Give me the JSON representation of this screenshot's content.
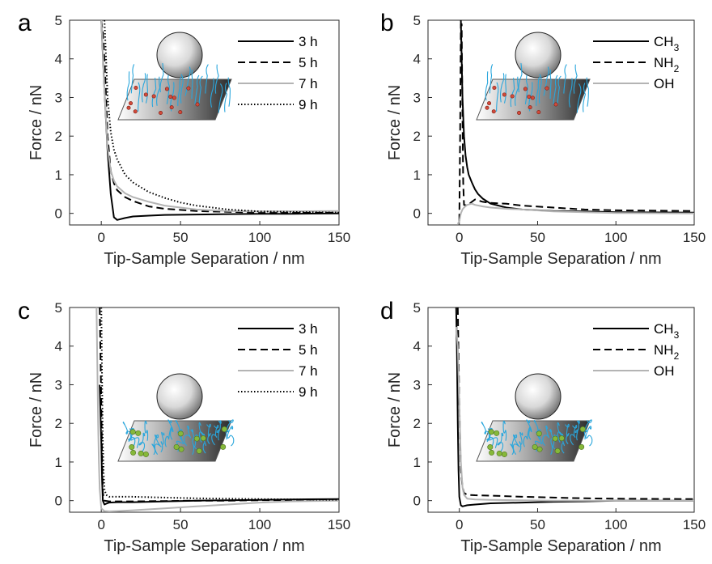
{
  "chart_data": [
    {
      "panel": "a",
      "type": "line",
      "xlabel": "Tip-Sample Separation / nm",
      "ylabel": "Force / nN",
      "xlim": [
        -20,
        150
      ],
      "ylim": [
        -0.3,
        5
      ],
      "xticks": [
        "0",
        "50",
        "100",
        "150"
      ],
      "yticks": [
        "0",
        "1",
        "2",
        "3",
        "4",
        "5"
      ],
      "legend_position": "top-right",
      "inset": "brush",
      "series": [
        {
          "name": "3 h",
          "style": "solid",
          "color": "#000000",
          "x": [
            0,
            2,
            4,
            6,
            8,
            10,
            15,
            20,
            30,
            40,
            60,
            80,
            100,
            120,
            150
          ],
          "y": [
            5,
            3.2,
            1.6,
            0.5,
            -0.1,
            -0.17,
            -0.12,
            -0.08,
            -0.06,
            -0.04,
            -0.03,
            -0.02,
            -0.01,
            -0.01,
            0
          ]
        },
        {
          "name": "5 h",
          "style": "dashed",
          "color": "#000000",
          "x": [
            0,
            1,
            2,
            3,
            4,
            6,
            8,
            10,
            15,
            20,
            30,
            40,
            60,
            80,
            100,
            150
          ],
          "y": [
            5,
            4.7,
            4.0,
            3.0,
            2.0,
            1.1,
            0.78,
            0.6,
            0.42,
            0.32,
            0.18,
            0.12,
            0.06,
            0.04,
            0.02,
            0.02
          ]
        },
        {
          "name": "7 h",
          "style": "solid",
          "color": "#b4b4b4",
          "x": [
            0,
            1,
            2,
            4,
            6,
            8,
            10,
            15,
            20,
            30,
            40,
            60,
            80,
            100,
            150
          ],
          "y": [
            5,
            4.2,
            3.2,
            1.7,
            1.1,
            0.85,
            0.7,
            0.52,
            0.42,
            0.3,
            0.2,
            0.1,
            0.06,
            0.05,
            0.06
          ]
        },
        {
          "name": "9 h",
          "style": "dotted",
          "color": "#000000",
          "x": [
            2,
            3,
            4,
            6,
            8,
            10,
            15,
            20,
            30,
            40,
            50,
            60,
            80,
            100,
            150
          ],
          "y": [
            5,
            4.0,
            3.0,
            2.1,
            1.65,
            1.4,
            1.0,
            0.8,
            0.55,
            0.4,
            0.28,
            0.2,
            0.1,
            0.05,
            0.02
          ]
        }
      ]
    },
    {
      "panel": "b",
      "type": "line",
      "xlabel": "Tip-Sample Separation / nm",
      "ylabel": "Force / nN",
      "xlim": [
        -20,
        150
      ],
      "ylim": [
        -0.3,
        5
      ],
      "xticks": [
        "0",
        "50",
        "100",
        "150"
      ],
      "yticks": [
        "0",
        "1",
        "2",
        "3",
        "4",
        "5"
      ],
      "legend_position": "top-right",
      "inset": "brush",
      "series": [
        {
          "name": "CH3",
          "style": "solid",
          "color": "#000000",
          "x": [
            1,
            1.5,
            2,
            3,
            4,
            5,
            6,
            8,
            10,
            12,
            15,
            20,
            30,
            40,
            60,
            80,
            100,
            150
          ],
          "y": [
            5,
            4.0,
            3.0,
            2.0,
            1.5,
            1.2,
            1.0,
            0.8,
            0.62,
            0.5,
            0.38,
            0.25,
            0.15,
            0.1,
            0.06,
            0.05,
            0.03,
            0.02
          ]
        },
        {
          "name": "NH2",
          "style": "dashed",
          "color": "#000000",
          "x": [
            0,
            0.5,
            1,
            1.5,
            2,
            2.5,
            3,
            5,
            8,
            10,
            15,
            20,
            30,
            40,
            60,
            80,
            100,
            150
          ],
          "y": [
            -0.2,
            2,
            4.9,
            4.9,
            2.5,
            0.8,
            0.22,
            0.2,
            0.3,
            0.36,
            0.3,
            0.27,
            0.25,
            0.2,
            0.15,
            0.1,
            0.08,
            0.06
          ]
        },
        {
          "name": "OH",
          "style": "solid",
          "color": "#b4b4b4",
          "x": [
            -1,
            0,
            1,
            2,
            3,
            5,
            8,
            10,
            15,
            20,
            30,
            40,
            60,
            80,
            100,
            150
          ],
          "y": [
            -0.28,
            -0.2,
            0.0,
            0.1,
            0.15,
            0.22,
            0.25,
            0.22,
            0.18,
            0.15,
            0.12,
            0.1,
            0.05,
            0.03,
            0.01,
            0
          ]
        }
      ]
    },
    {
      "panel": "c",
      "type": "line",
      "xlabel": "Tip-Sample Separation / nm",
      "ylabel": "Force / nN",
      "xlim": [
        -20,
        150
      ],
      "ylim": [
        -0.3,
        5
      ],
      "xticks": [
        "0",
        "50",
        "100",
        "150"
      ],
      "yticks": [
        "0",
        "1",
        "2",
        "3",
        "4",
        "5"
      ],
      "legend_position": "top-right",
      "inset": "coil",
      "series": [
        {
          "name": "3 h",
          "style": "solid",
          "color": "#000000",
          "x": [
            -1,
            0,
            0.5,
            1,
            2,
            3,
            5,
            10,
            20,
            40,
            60,
            80,
            100,
            120,
            150
          ],
          "y": [
            3,
            1.5,
            0.5,
            0.0,
            -0.1,
            -0.08,
            -0.05,
            -0.04,
            -0.04,
            -0.02,
            0,
            0.01,
            0.02,
            0.03,
            0.04
          ]
        },
        {
          "name": "5 h",
          "style": "dashed",
          "color": "#000000",
          "x": [
            -1,
            0,
            0.5,
            1,
            2,
            5,
            10,
            20,
            40,
            60,
            80,
            100,
            150
          ],
          "y": [
            5,
            2.5,
            1,
            0.2,
            0,
            -0.02,
            -0.02,
            -0.02,
            -0.01,
            0,
            0,
            0.01,
            0.02
          ]
        },
        {
          "name": "7 h",
          "style": "solid",
          "color": "#b4b4b4",
          "x": [
            -3,
            -2.5,
            -2,
            -1.5,
            -1,
            0,
            2,
            5,
            10,
            20,
            40,
            60,
            80,
            100,
            120,
            150
          ],
          "y": [
            5,
            3.5,
            2.0,
            1.0,
            0.3,
            -0.2,
            -0.27,
            -0.28,
            -0.27,
            -0.25,
            -0.2,
            -0.15,
            -0.1,
            -0.05,
            -0.02,
            0
          ]
        },
        {
          "name": "9 h",
          "style": "dotted",
          "color": "#000000",
          "x": [
            0,
            0.5,
            1,
            1.5,
            2,
            3,
            5,
            10,
            20,
            40,
            60,
            80,
            100,
            150
          ],
          "y": [
            5,
            3,
            1.5,
            0.7,
            0.3,
            0.15,
            0.1,
            0.1,
            0.1,
            0.08,
            0.06,
            0.05,
            0.04,
            0.02
          ]
        }
      ]
    },
    {
      "panel": "d",
      "type": "line",
      "xlabel": "Tip-Sample Separation / nm",
      "ylabel": "Force / nN",
      "xlim": [
        -20,
        150
      ],
      "ylim": [
        -0.3,
        5
      ],
      "xticks": [
        "0",
        "50",
        "100",
        "150"
      ],
      "yticks": [
        "0",
        "1",
        "2",
        "3",
        "4",
        "5"
      ],
      "legend_position": "top-right",
      "inset": "coil",
      "series": [
        {
          "name": "CH3",
          "style": "solid",
          "color": "#000000",
          "x": [
            -2,
            -1.5,
            -1,
            -0.5,
            0,
            1,
            2,
            5,
            10,
            20,
            40,
            60,
            80,
            100,
            150
          ],
          "y": [
            5,
            3.8,
            2.0,
            0.8,
            0.1,
            -0.12,
            -0.15,
            -0.12,
            -0.1,
            -0.07,
            -0.05,
            -0.03,
            -0.02,
            0,
            0
          ]
        },
        {
          "name": "NH2",
          "style": "dashed",
          "color": "#000000",
          "x": [
            -1,
            0,
            1,
            2,
            3,
            5,
            10,
            20,
            40,
            60,
            80,
            100,
            150
          ],
          "y": [
            5,
            2.5,
            0.8,
            0.35,
            0.2,
            0.15,
            0.14,
            0.13,
            0.1,
            0.08,
            0.06,
            0.05,
            0.04
          ]
        },
        {
          "name": "OH",
          "style": "solid",
          "color": "#b4b4b4",
          "x": [
            -2,
            -1,
            0,
            1,
            2,
            3,
            5,
            10,
            20,
            40,
            60,
            80,
            100,
            150
          ],
          "y": [
            4.5,
            4.0,
            2.5,
            1.0,
            0.35,
            0.15,
            0.05,
            0.03,
            0.02,
            0.01,
            0,
            0,
            0,
            0
          ]
        }
      ]
    }
  ]
}
